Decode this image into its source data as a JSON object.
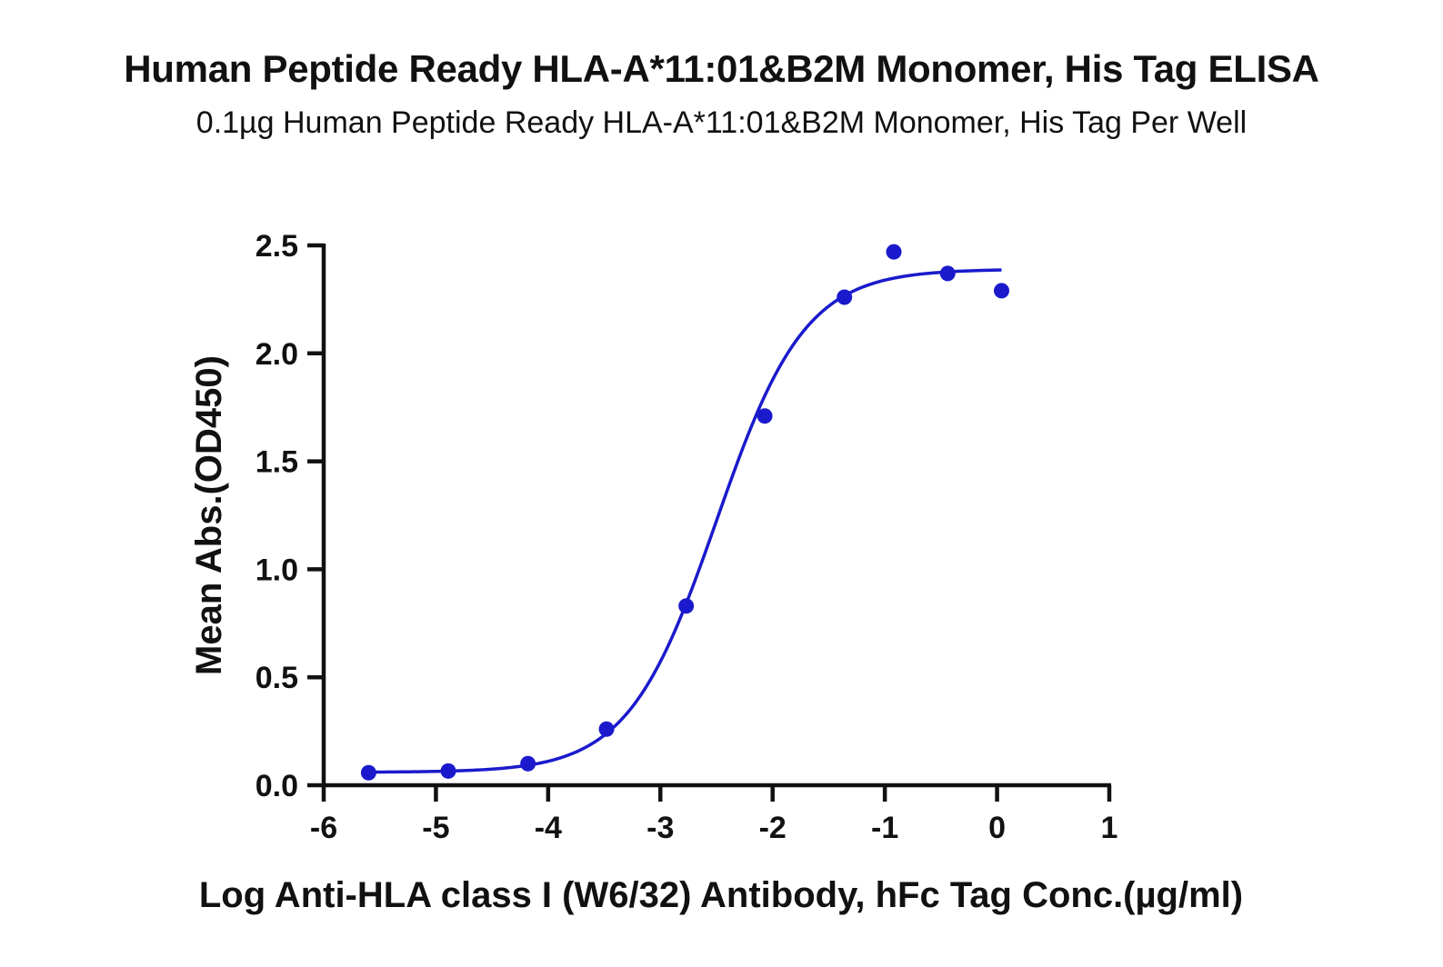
{
  "chart_data": {
    "type": "scatter",
    "title": "Human Peptide Ready HLA-A*11:01&B2M Monomer, His Tag ELISA",
    "subtitle": "0.1µg Human Peptide Ready HLA-A*11:01&B2M Monomer, His Tag Per Well",
    "xlabel": "Log Anti-HLA class I (W6/32) Antibody, hFc Tag Conc.(µg/ml)",
    "ylabel": "Mean Abs.(OD450)",
    "xlim": [
      -6,
      1
    ],
    "ylim": [
      0,
      2.5
    ],
    "x_ticks": [
      -6,
      -5,
      -4,
      -3,
      -2,
      -1,
      0,
      1
    ],
    "x_tick_labels": [
      "-6",
      "-5",
      "-4",
      "-3",
      "-2",
      "-1",
      "0",
      "1"
    ],
    "y_ticks": [
      0,
      0.5,
      1,
      1.5,
      2,
      2.5
    ],
    "y_tick_labels": [
      "0.0",
      "0.5",
      "1.0",
      "1.5",
      "2.0",
      "2.5"
    ],
    "grid": false,
    "color": "#1a1acc",
    "series": [
      {
        "x": [
          -5.6,
          -4.89,
          -4.18,
          -3.48,
          -2.77,
          -2.07,
          -1.36,
          -0.92,
          -0.44,
          0.04
        ],
        "y": [
          0.058,
          0.066,
          0.1,
          0.26,
          0.83,
          1.71,
          2.26,
          2.47,
          2.37,
          2.29
        ]
      }
    ],
    "fit": {
      "model": "4PL",
      "x_range": [
        -5.6,
        0.04
      ],
      "bottom": 0.06,
      "top": 2.39,
      "log_ec50": -2.5,
      "hill_slope": 1.1
    }
  }
}
